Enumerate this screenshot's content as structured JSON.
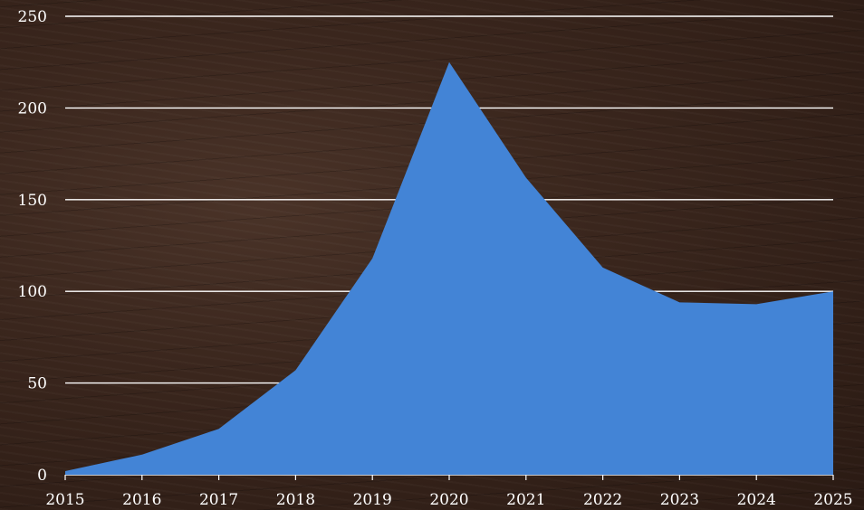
{
  "chart_data": {
    "type": "area",
    "title": "",
    "xlabel": "",
    "ylabel": "",
    "x": [
      "2015",
      "2016",
      "2017",
      "2018",
      "2019",
      "2020",
      "2021",
      "2022",
      "2023",
      "2024",
      "2025"
    ],
    "values": [
      2,
      11,
      25,
      57,
      118,
      225,
      162,
      113,
      94,
      93,
      100
    ],
    "ylim": [
      0,
      250
    ],
    "yticks": [
      "0",
      "50",
      "100",
      "150",
      "200",
      "250"
    ],
    "grid": true,
    "legend": "none",
    "colors": {
      "fill": "#4384d6",
      "grid": "#ffffff",
      "text": "#ffffff"
    }
  }
}
